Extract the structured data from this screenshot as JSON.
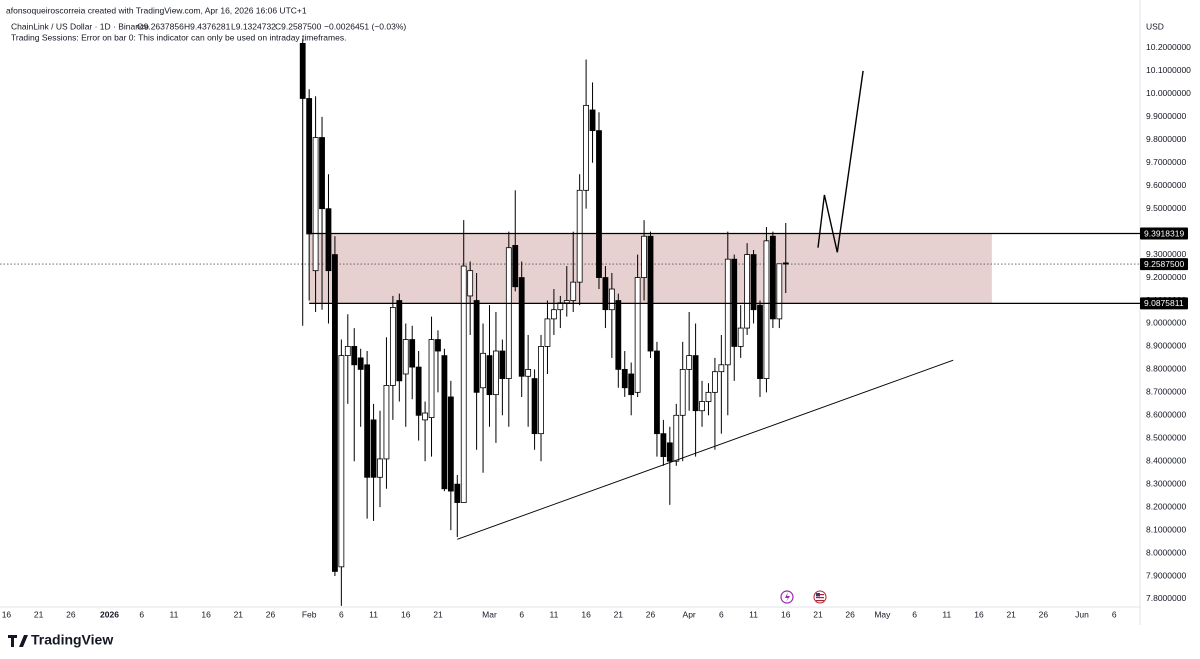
{
  "header": {
    "attribution": "afonsoqueiroscorreia created with TradingView.com, Apr 16, 2026 16:06 UTC+1",
    "symbol": "ChainLink / US Dollar · 1D · Binance",
    "ohlc": [
      "O9.2637856",
      "H9.4376281",
      "L9.1324732",
      "C9.2587500"
    ],
    "change": "−0.0026451 (−0.03%)",
    "indicator_error": "Trading Sessions: Error on bar 0: This indicator can only be used on intraday timeframes."
  },
  "footer": {
    "logo": "TradingView"
  },
  "chart_data": {
    "type": "candlestick",
    "axis_label": "USD",
    "grid": false,
    "up_color": "#ffffff",
    "down_color": "#000000",
    "wick_color": "#000000",
    "xlim": [
      "2025-12-15",
      "2026-06-10"
    ],
    "ylim": [
      7.765,
      10.409
    ],
    "xticks": [
      {
        "value": "2025-12-16",
        "label": "16"
      },
      {
        "value": "2025-12-21",
        "label": "21"
      },
      {
        "value": "2025-12-26",
        "label": "26"
      },
      {
        "value": "2026-01-01",
        "label": "2026"
      },
      {
        "value": "2026-01-06",
        "label": "6"
      },
      {
        "value": "2026-01-11",
        "label": "11"
      },
      {
        "value": "2026-01-16",
        "label": "16"
      },
      {
        "value": "2026-01-21",
        "label": "21"
      },
      {
        "value": "2026-01-26",
        "label": "26"
      },
      {
        "value": "2026-02-01",
        "label": "Feb"
      },
      {
        "value": "2026-02-06",
        "label": "6"
      },
      {
        "value": "2026-02-11",
        "label": "11"
      },
      {
        "value": "2026-02-16",
        "label": "16"
      },
      {
        "value": "2026-02-21",
        "label": "21"
      },
      {
        "value": "2026-03-01",
        "label": "Mar"
      },
      {
        "value": "2026-03-06",
        "label": "6"
      },
      {
        "value": "2026-03-11",
        "label": "11"
      },
      {
        "value": "2026-03-16",
        "label": "16"
      },
      {
        "value": "2026-03-21",
        "label": "21"
      },
      {
        "value": "2026-03-26",
        "label": "26"
      },
      {
        "value": "2026-04-01",
        "label": "Apr"
      },
      {
        "value": "2026-04-06",
        "label": "6"
      },
      {
        "value": "2026-04-11",
        "label": "11"
      },
      {
        "value": "2026-04-16",
        "label": "16"
      },
      {
        "value": "2026-04-21",
        "label": "21"
      },
      {
        "value": "2026-04-26",
        "label": "26"
      },
      {
        "value": "2026-05-01",
        "label": "May"
      },
      {
        "value": "2026-05-06",
        "label": "6"
      },
      {
        "value": "2026-05-11",
        "label": "11"
      },
      {
        "value": "2026-05-16",
        "label": "16"
      },
      {
        "value": "2026-05-21",
        "label": "21"
      },
      {
        "value": "2026-05-26",
        "label": "26"
      },
      {
        "value": "2026-06-01",
        "label": "Jun"
      },
      {
        "value": "2026-06-06",
        "label": "6"
      }
    ],
    "yticks": [
      {
        "value": 7.8,
        "label": "7.8000000"
      },
      {
        "value": 7.9,
        "label": "7.9000000"
      },
      {
        "value": 8.0,
        "label": "8.0000000"
      },
      {
        "value": 8.1,
        "label": "8.1000000"
      },
      {
        "value": 8.2,
        "label": "8.2000000"
      },
      {
        "value": 8.3,
        "label": "8.3000000"
      },
      {
        "value": 8.4,
        "label": "8.4000000"
      },
      {
        "value": 8.5,
        "label": "8.5000000"
      },
      {
        "value": 8.6,
        "label": "8.6000000"
      },
      {
        "value": 8.7,
        "label": "8.7000000"
      },
      {
        "value": 8.8,
        "label": "8.8000000"
      },
      {
        "value": 8.9,
        "label": "8.9000000"
      },
      {
        "value": 9.0,
        "label": "9.0000000"
      },
      {
        "value": 9.1,
        "label": "9.1000000"
      },
      {
        "value": 9.2,
        "label": "9.2000000"
      },
      {
        "value": 9.3,
        "label": "9.3000000"
      },
      {
        "value": 9.5,
        "label": "9.5000000"
      },
      {
        "value": 9.6,
        "label": "9.6000000"
      },
      {
        "value": 9.7,
        "label": "9.7000000"
      },
      {
        "value": 9.8,
        "label": "9.8000000"
      },
      {
        "value": 9.9,
        "label": "9.9000000"
      },
      {
        "value": 10.0,
        "label": "10.0000000"
      },
      {
        "value": 10.1,
        "label": "10.1000000"
      },
      {
        "value": 10.2,
        "label": "10.2000000"
      }
    ],
    "x": [
      "2026-01-31",
      "2026-02-01",
      "2026-02-02",
      "2026-02-03",
      "2026-02-04",
      "2026-02-05",
      "2026-02-06",
      "2026-02-07",
      "2026-02-08",
      "2026-02-09",
      "2026-02-10",
      "2026-02-11",
      "2026-02-12",
      "2026-02-13",
      "2026-02-14",
      "2026-02-15",
      "2026-02-16",
      "2026-02-17",
      "2026-02-18",
      "2026-02-19",
      "2026-02-20",
      "2026-02-21",
      "2026-02-22",
      "2026-02-23",
      "2026-02-24",
      "2026-02-25",
      "2026-02-26",
      "2026-02-27",
      "2026-02-28",
      "2026-03-01",
      "2026-03-02",
      "2026-03-03",
      "2026-03-04",
      "2026-03-05",
      "2026-03-06",
      "2026-03-07",
      "2026-03-08",
      "2026-03-09",
      "2026-03-10",
      "2026-03-11",
      "2026-03-12",
      "2026-03-13",
      "2026-03-14",
      "2026-03-15",
      "2026-03-16",
      "2026-03-17",
      "2026-03-18",
      "2026-03-19",
      "2026-03-20",
      "2026-03-21",
      "2026-03-22",
      "2026-03-23",
      "2026-03-24",
      "2026-03-25",
      "2026-03-26",
      "2026-03-27",
      "2026-03-28",
      "2026-03-29",
      "2026-03-30",
      "2026-03-31",
      "2026-04-01",
      "2026-04-02",
      "2026-04-03",
      "2026-04-04",
      "2026-04-05",
      "2026-04-06",
      "2026-04-07",
      "2026-04-08",
      "2026-04-09",
      "2026-04-10",
      "2026-04-11",
      "2026-04-12",
      "2026-04-13",
      "2026-04-14",
      "2026-04-15",
      "2026-04-16"
    ],
    "open": [
      10.22,
      9.98,
      9.23,
      9.81,
      9.5,
      9.3,
      7.94,
      8.86,
      8.9,
      8.85,
      8.82,
      8.58,
      8.33,
      8.41,
      8.73,
      9.1,
      8.78,
      8.93,
      8.81,
      8.58,
      8.59,
      8.93,
      8.86,
      8.68,
      8.3,
      8.22,
      9.12,
      9.1,
      8.72,
      8.86,
      8.69,
      8.88,
      8.76,
      9.34,
      9.2,
      8.77,
      8.76,
      8.52,
      8.9,
      9.02,
      9.06,
      9.09,
      9.1,
      9.18,
      9.58,
      9.93,
      9.84,
      9.2,
      9.06,
      9.1,
      8.8,
      8.78,
      8.7,
      9.2,
      9.38,
      8.88,
      8.52,
      8.48,
      8.4,
      8.6,
      8.8,
      8.86,
      8.62,
      8.66,
      8.7,
      8.79,
      8.82,
      9.28,
      8.9,
      8.98,
      9.3,
      9.08,
      8.76,
      9.38,
      9.02,
      9.2638
    ],
    "high": [
      10.24,
      10.02,
      9.99,
      9.9,
      9.65,
      9.38,
      8.93,
      9.04,
      8.98,
      8.89,
      8.88,
      8.65,
      8.62,
      8.94,
      9.12,
      9.13,
      9.0,
      8.99,
      8.88,
      8.66,
      9.03,
      8.97,
      8.89,
      8.75,
      8.34,
      9.45,
      9.27,
      9.22,
      9.0,
      9.08,
      9.05,
      8.93,
      9.4,
      9.58,
      9.27,
      8.95,
      8.8,
      8.95,
      9.1,
      9.15,
      9.12,
      9.25,
      9.4,
      9.65,
      10.15,
      10.05,
      9.92,
      9.25,
      9.22,
      9.13,
      8.88,
      8.83,
      9.3,
      9.45,
      9.4,
      8.92,
      8.58,
      8.55,
      8.65,
      8.92,
      9.05,
      9.0,
      8.75,
      8.74,
      8.85,
      8.95,
      9.4,
      9.3,
      9.08,
      9.35,
      9.32,
      9.1,
      9.42,
      9.4,
      9.26,
      9.4376
    ],
    "low": [
      8.99,
      9.1,
      9.05,
      9.06,
      9.0,
      7.9,
      7.77,
      8.65,
      8.4,
      8.55,
      8.15,
      8.14,
      8.2,
      8.28,
      8.58,
      8.66,
      8.55,
      8.67,
      8.49,
      8.4,
      8.42,
      8.7,
      8.27,
      8.1,
      8.07,
      8.22,
      8.95,
      8.45,
      8.35,
      8.55,
      8.48,
      8.6,
      8.55,
      9.14,
      8.68,
      8.55,
      8.45,
      8.4,
      8.78,
      8.95,
      8.98,
      9.03,
      9.05,
      9.08,
      9.5,
      9.7,
      9.15,
      8.98,
      8.85,
      8.72,
      8.68,
      8.6,
      8.68,
      9.1,
      8.85,
      8.42,
      8.38,
      8.21,
      8.38,
      8.4,
      8.62,
      8.42,
      8.55,
      8.6,
      8.45,
      8.52,
      8.6,
      8.75,
      8.85,
      8.95,
      9.0,
      8.68,
      8.7,
      8.98,
      8.98,
      9.1325
    ],
    "close": [
      9.98,
      9.39,
      9.81,
      9.5,
      9.23,
      7.92,
      8.86,
      8.9,
      8.82,
      8.8,
      8.33,
      8.33,
      8.41,
      8.73,
      9.07,
      8.75,
      8.93,
      8.81,
      8.6,
      8.61,
      8.93,
      8.88,
      8.28,
      8.27,
      8.22,
      9.25,
      9.23,
      8.7,
      8.87,
      8.69,
      8.88,
      8.76,
      9.33,
      9.16,
      8.77,
      8.8,
      8.52,
      8.9,
      9.02,
      9.06,
      9.09,
      9.1,
      9.18,
      9.58,
      9.95,
      9.84,
      9.2,
      9.06,
      9.15,
      8.8,
      8.72,
      8.69,
      9.2,
      9.38,
      8.88,
      8.52,
      8.42,
      8.4,
      8.6,
      8.8,
      8.86,
      8.62,
      8.66,
      8.7,
      8.79,
      8.82,
      9.28,
      8.9,
      8.98,
      9.3,
      9.06,
      8.76,
      9.36,
      9.02,
      9.26,
      9.2588
    ],
    "zone": {
      "x": [
        "2026-02-01",
        "2026-05-18"
      ],
      "y": [
        9.0875811,
        9.3918319
      ],
      "color": "#e2c8c8"
    },
    "hlines": [
      9.3918319,
      9.0875811
    ],
    "last_price": {
      "value": 9.25875,
      "label": "9.2587500"
    },
    "trendline": {
      "x": [
        "2026-02-24",
        "2026-05-12"
      ],
      "y": [
        8.06,
        8.84
      ]
    },
    "projection": {
      "x": [
        "2026-04-21",
        "2026-04-22",
        "2026-04-24",
        "2026-04-28"
      ],
      "y": [
        9.33,
        9.56,
        9.31,
        10.1
      ]
    }
  }
}
